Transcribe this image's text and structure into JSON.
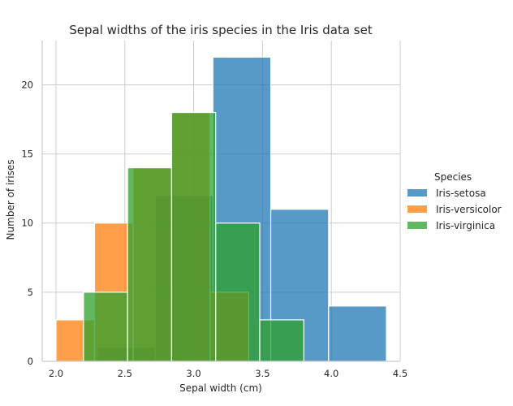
{
  "chart_data": {
    "type": "bar",
    "title": "Sepal widths of the iris species in the Iris data set",
    "xlabel": "Sepal width (cm)",
    "ylabel": "Number of irises",
    "xlim": [
      1.9,
      4.5
    ],
    "ylim": [
      0,
      23.2
    ],
    "xticks": [
      "2.0",
      "2.5",
      "3.0",
      "3.5",
      "4.0",
      "4.5"
    ],
    "yticks": [
      "0",
      "5",
      "10",
      "15",
      "20"
    ],
    "grid": true,
    "legend": {
      "title": "Species",
      "placement": "right"
    },
    "series": [
      {
        "name": "Iris-setosa",
        "color": "#1f77b4",
        "bins": [
          {
            "x0": 2.3,
            "x1": 2.72,
            "value": 1
          },
          {
            "x0": 2.72,
            "x1": 3.14,
            "value": 12
          },
          {
            "x0": 3.14,
            "x1": 3.56,
            "value": 22
          },
          {
            "x0": 3.56,
            "x1": 3.98,
            "value": 11
          },
          {
            "x0": 3.98,
            "x1": 4.4,
            "value": 4
          }
        ]
      },
      {
        "name": "Iris-versicolor",
        "color": "#ff7f0e",
        "bins": [
          {
            "x0": 2.0,
            "x1": 2.28,
            "value": 3
          },
          {
            "x0": 2.28,
            "x1": 2.56,
            "value": 10
          },
          {
            "x0": 2.56,
            "x1": 2.84,
            "value": 14
          },
          {
            "x0": 2.84,
            "x1": 3.12,
            "value": 18
          },
          {
            "x0": 3.12,
            "x1": 3.4,
            "value": 5
          }
        ]
      },
      {
        "name": "Iris-virginica",
        "color": "#2ca02c",
        "bins": [
          {
            "x0": 2.2,
            "x1": 2.52,
            "value": 5
          },
          {
            "x0": 2.52,
            "x1": 2.84,
            "value": 14
          },
          {
            "x0": 2.84,
            "x1": 3.16,
            "value": 18
          },
          {
            "x0": 3.16,
            "x1": 3.48,
            "value": 10
          },
          {
            "x0": 3.48,
            "x1": 3.8,
            "value": 3
          }
        ]
      }
    ]
  }
}
